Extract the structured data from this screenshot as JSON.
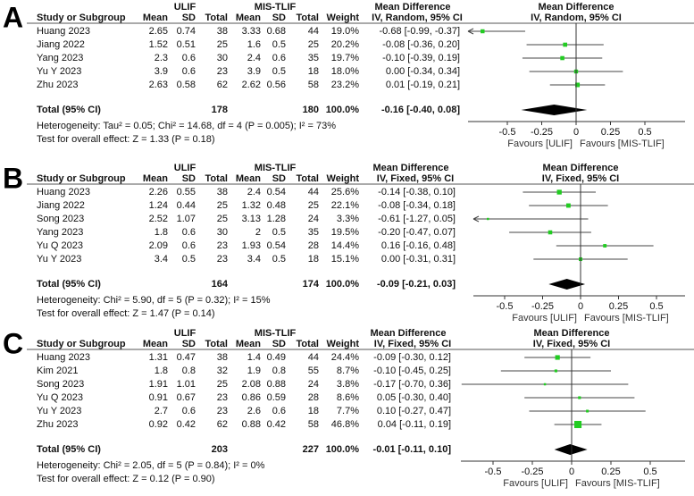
{
  "chart_data": [
    {
      "type": "forest",
      "panel_label": "A",
      "group_labels": [
        "ULIF",
        "MIS-TLIF"
      ],
      "md_header": "Mean Difference",
      "md_subheader": "IV, Random, 95% CI",
      "columns": [
        "Study or Subgroup",
        "Mean",
        "SD",
        "Total",
        "Mean",
        "SD",
        "Total",
        "Weight"
      ],
      "studies": [
        {
          "name": "Huang 2023",
          "c1": [
            "2.65",
            "0.74",
            "38"
          ],
          "c2": [
            "3.33",
            "0.68",
            "44"
          ],
          "weight": "19.0%",
          "w": 19.0,
          "ci_text": "-0.68 [-0.99, -0.37]",
          "md": -0.68,
          "lo": -0.99,
          "hi": -0.37
        },
        {
          "name": "Jiang 2022",
          "c1": [
            "1.52",
            "0.51",
            "25"
          ],
          "c2": [
            "1.6",
            "0.5",
            "25"
          ],
          "weight": "20.2%",
          "w": 20.2,
          "ci_text": "-0.08 [-0.36, 0.20]",
          "md": -0.08,
          "lo": -0.36,
          "hi": 0.2
        },
        {
          "name": "Yang 2023",
          "c1": [
            "2.3",
            "0.6",
            "30"
          ],
          "c2": [
            "2.4",
            "0.6",
            "35"
          ],
          "weight": "19.7%",
          "w": 19.7,
          "ci_text": "-0.10 [-0.39, 0.19]",
          "md": -0.1,
          "lo": -0.39,
          "hi": 0.19
        },
        {
          "name": "Yu Y 2023",
          "c1": [
            "3.9",
            "0.6",
            "23"
          ],
          "c2": [
            "3.9",
            "0.5",
            "18"
          ],
          "weight": "18.0%",
          "w": 18.0,
          "ci_text": "0.00 [-0.34, 0.34]",
          "md": 0.0,
          "lo": -0.34,
          "hi": 0.34
        },
        {
          "name": "Zhu 2023",
          "c1": [
            "2.63",
            "0.58",
            "62"
          ],
          "c2": [
            "2.62",
            "0.56",
            "58"
          ],
          "weight": "23.2%",
          "w": 23.2,
          "ci_text": "0.01 [-0.19, 0.21]",
          "md": 0.01,
          "lo": -0.19,
          "hi": 0.21
        }
      ],
      "total": {
        "label": "Total (95% CI)",
        "n1": "178",
        "n2": "180",
        "weight": "100.0%",
        "ci_text": "-0.16 [-0.40, 0.08]",
        "md": -0.16,
        "lo": -0.4,
        "hi": 0.08
      },
      "heterogeneity": "Heterogeneity: Tau² = 0.05; Chi² = 14.68, df = 4 (P = 0.005); I² = 73%",
      "overall_effect": "Test for overall effect: Z = 1.33 (P = 0.18)",
      "ticks": [
        -0.5,
        -0.25,
        0,
        0.25,
        0.5
      ],
      "tick_labels": [
        "-0.5",
        "-0.25",
        "0",
        "0.25",
        "0.5"
      ],
      "xlim": [
        -0.79,
        0.79
      ],
      "favours_left": "Favours [ULIF]",
      "favours_right": "Favours [MIS-TLIF]"
    },
    {
      "type": "forest",
      "panel_label": "B",
      "group_labels": [
        "ULIF",
        "MIS-TLIF"
      ],
      "md_header": "Mean Difference",
      "md_subheader": "IV, Fixed, 95% CI",
      "columns": [
        "Study or Subgroup",
        "Mean",
        "SD",
        "Total",
        "Mean",
        "SD",
        "Total",
        "Weight"
      ],
      "studies": [
        {
          "name": "Huang 2023",
          "c1": [
            "2.26",
            "0.55",
            "38"
          ],
          "c2": [
            "2.4",
            "0.54",
            "44"
          ],
          "weight": "25.6%",
          "w": 25.6,
          "ci_text": "-0.14 [-0.38, 0.10]",
          "md": -0.14,
          "lo": -0.38,
          "hi": 0.1
        },
        {
          "name": "Jiang 2022",
          "c1": [
            "1.24",
            "0.44",
            "25"
          ],
          "c2": [
            "1.32",
            "0.48",
            "25"
          ],
          "weight": "22.1%",
          "w": 22.1,
          "ci_text": "-0.08 [-0.34, 0.18]",
          "md": -0.08,
          "lo": -0.34,
          "hi": 0.18
        },
        {
          "name": "Song 2023",
          "c1": [
            "2.52",
            "1.07",
            "25"
          ],
          "c2": [
            "3.13",
            "1.28",
            "24"
          ],
          "weight": "3.3%",
          "w": 3.3,
          "ci_text": "-0.61 [-1.27, 0.05]",
          "md": -0.61,
          "lo": -1.27,
          "hi": 0.05
        },
        {
          "name": "Yang 2023",
          "c1": [
            "1.8",
            "0.6",
            "30"
          ],
          "c2": [
            "2",
            "0.5",
            "35"
          ],
          "weight": "19.5%",
          "w": 19.5,
          "ci_text": "-0.20 [-0.47, 0.07]",
          "md": -0.2,
          "lo": -0.47,
          "hi": 0.07
        },
        {
          "name": "Yu Q 2023",
          "c1": [
            "2.09",
            "0.6",
            "23"
          ],
          "c2": [
            "1.93",
            "0.54",
            "28"
          ],
          "weight": "14.4%",
          "w": 14.4,
          "ci_text": "0.16 [-0.16, 0.48]",
          "md": 0.16,
          "lo": -0.16,
          "hi": 0.48
        },
        {
          "name": "Yu Y 2023",
          "c1": [
            "3.4",
            "0.5",
            "23"
          ],
          "c2": [
            "3.4",
            "0.5",
            "18"
          ],
          "weight": "15.1%",
          "w": 15.1,
          "ci_text": "0.00 [-0.31, 0.31]",
          "md": 0.0,
          "lo": -0.31,
          "hi": 0.31
        }
      ],
      "total": {
        "label": "Total (95% CI)",
        "n1": "164",
        "n2": "174",
        "weight": "100.0%",
        "ci_text": "-0.09 [-0.21, 0.03]",
        "md": -0.09,
        "lo": -0.21,
        "hi": 0.03
      },
      "heterogeneity": "Heterogeneity: Chi² = 5.90, df = 5 (P = 0.32); I² = 15%",
      "overall_effect": "Test for overall effect: Z = 1.47 (P = 0.14)",
      "ticks": [
        -0.5,
        -0.25,
        0,
        0.25,
        0.5
      ],
      "tick_labels": [
        "-0.5",
        "-0.25",
        "0",
        "0.25",
        "0.5"
      ],
      "xlim": [
        -0.71,
        0.69
      ],
      "favours_left": "Favours [ULIF]",
      "favours_right": "Favours [MIS-TLIF]"
    },
    {
      "type": "forest",
      "panel_label": "C",
      "group_labels": [
        "ULIF",
        "MIS-TLIF"
      ],
      "md_header": "Mean Difference",
      "md_subheader": "IV, Fixed, 95% CI",
      "columns": [
        "Study or Subgroup",
        "Mean",
        "SD",
        "Total",
        "Mean",
        "SD",
        "Total",
        "Weight"
      ],
      "studies": [
        {
          "name": "Huang 2023",
          "c1": [
            "1.31",
            "0.47",
            "38"
          ],
          "c2": [
            "1.4",
            "0.49",
            "44"
          ],
          "weight": "24.4%",
          "w": 24.4,
          "ci_text": "-0.09 [-0.30, 0.12]",
          "md": -0.09,
          "lo": -0.3,
          "hi": 0.12
        },
        {
          "name": "Kim 2021",
          "c1": [
            "1.8",
            "0.8",
            "32"
          ],
          "c2": [
            "1.9",
            "0.8",
            "55"
          ],
          "weight": "8.7%",
          "w": 8.7,
          "ci_text": "-0.10 [-0.45, 0.25]",
          "md": -0.1,
          "lo": -0.45,
          "hi": 0.25
        },
        {
          "name": "Song 2023",
          "c1": [
            "1.91",
            "1.01",
            "25"
          ],
          "c2": [
            "2.08",
            "0.88",
            "24"
          ],
          "weight": "3.8%",
          "w": 3.8,
          "ci_text": "-0.17 [-0.70, 0.36]",
          "md": -0.17,
          "lo": -0.7,
          "hi": 0.36
        },
        {
          "name": "Yu Q 2023",
          "c1": [
            "0.91",
            "0.67",
            "23"
          ],
          "c2": [
            "0.86",
            "0.59",
            "28"
          ],
          "weight": "8.6%",
          "w": 8.6,
          "ci_text": "0.05 [-0.30, 0.40]",
          "md": 0.05,
          "lo": -0.3,
          "hi": 0.4
        },
        {
          "name": "Yu Y 2023",
          "c1": [
            "2.7",
            "0.6",
            "23"
          ],
          "c2": [
            "2.6",
            "0.6",
            "18"
          ],
          "weight": "7.7%",
          "w": 7.7,
          "ci_text": "0.10 [-0.27, 0.47]",
          "md": 0.1,
          "lo": -0.27,
          "hi": 0.47
        },
        {
          "name": "Zhu 2023",
          "c1": [
            "0.92",
            "0.42",
            "62"
          ],
          "c2": [
            "0.88",
            "0.42",
            "58"
          ],
          "weight": "46.8%",
          "w": 46.8,
          "ci_text": "0.04 [-0.11, 0.19]",
          "md": 0.04,
          "lo": -0.11,
          "hi": 0.19
        }
      ],
      "total": {
        "label": "Total (95% CI)",
        "n1": "203",
        "n2": "227",
        "weight": "100.0%",
        "ci_text": "-0.01 [-0.11, 0.10]",
        "md": -0.01,
        "lo": -0.11,
        "hi": 0.1
      },
      "heterogeneity": "Heterogeneity: Chi² = 2.05, df = 5 (P = 0.84); I² = 0%",
      "overall_effect": "Test for overall effect: Z = 0.12 (P = 0.90)",
      "ticks": [
        -0.5,
        -0.25,
        0,
        0.25,
        0.5
      ],
      "tick_labels": [
        "-0.5",
        "-0.25",
        "0",
        "0.25",
        "0.5"
      ],
      "xlim": [
        -0.7,
        0.72
      ],
      "favours_left": "Favours [ULIF]",
      "favours_right": "Favours [MIS-TLIF]"
    }
  ],
  "colors": {
    "marker": "#22cc22",
    "line": "#444444",
    "diamond": "#000000"
  }
}
